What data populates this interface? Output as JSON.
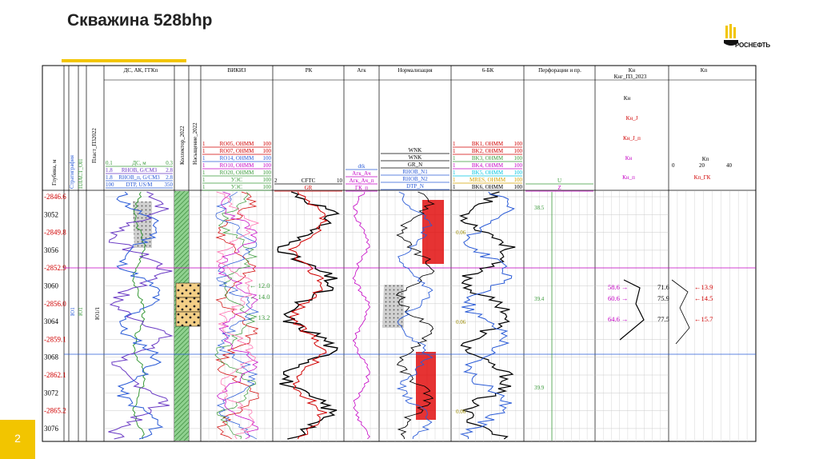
{
  "slide": {
    "title": "Скважина 528bhp",
    "page_number": "2",
    "logo_text": "РОСНЕФТЬ"
  },
  "tracks": {
    "depth_label": "Глубина, м",
    "strat_label": "Стратиграфия",
    "plast_label": "Пласт_П32022",
    "plast_sub1": "ПЛАСТ_ОП",
    "plast_sub2": "ПЛАСТ_ОП",
    "ds_title": "ДС, АК, ГГКп",
    "ds_curves": [
      "ДС, м",
      "RHOB, G/CM3",
      "RHOB_п, G/CM3",
      "DTP, US/M"
    ],
    "ds_scales": [
      [
        "0.1",
        "0.3"
      ],
      [
        "1.8",
        "2.8"
      ],
      [
        "1.8",
        "2.8"
      ],
      [
        "100",
        "350"
      ]
    ],
    "kollektor_label": "Коллектор_2022",
    "nasysh_label": "Насыщение_2022",
    "vikiz_title": "ВИКИЗ",
    "vikiz_curves": [
      "RO05, ОНММ",
      "RO07, ОНММ",
      "RO14, ОНММ",
      "RO10, ОНММ",
      "RO20, ОНММ",
      "УЭС",
      "УЭС"
    ],
    "rk_title": "РК",
    "rk_curves": [
      "CFTC",
      "GR"
    ],
    "agk_title": "Агк",
    "agk_curves": [
      "dtk",
      "Агк_Ач",
      "Агк_Ач_п",
      "ГК_п"
    ],
    "norm_title": "Нормализация",
    "norm_curves": [
      "WNK",
      "WNK",
      "GR_N",
      "RHOB_N1",
      "RHOB_N2",
      "DTP_N"
    ],
    "bk_title": "6-БК",
    "bk_curves": [
      "BK1, ОНММ",
      "BK2, ОНММ",
      "BK3, ОНММ",
      "BK4, ОНММ",
      "BK5, ОНММ",
      "MRES, ОНММ",
      "BK6, ОНММ"
    ],
    "perf_title": "Перфорации и пр.",
    "perf_curves": [
      "U",
      "Z"
    ],
    "kn_title": "Кн",
    "kn_curves": [
      "Кнг_ПЗ_2023",
      "Кн",
      "Кн_J",
      "Кн_J_п",
      "Кн",
      "Кн_п"
    ],
    "kp_title": "Кп",
    "kp_curves": [
      "Кп",
      "Кп_ГК"
    ],
    "kp_scale": [
      "0",
      "20",
      "40"
    ]
  },
  "depths": [
    {
      "label": "-2846.6",
      "md": ""
    },
    {
      "label": "3052",
      "md": ""
    },
    {
      "label": "-2849.8",
      "md": ""
    },
    {
      "label": "3056",
      "md": ""
    },
    {
      "label": "-2852.9",
      "md": ""
    },
    {
      "label": "3060",
      "md": ""
    },
    {
      "label": "-2856.0",
      "md": ""
    },
    {
      "label": "3064",
      "md": ""
    },
    {
      "label": "-2859.1",
      "md": ""
    },
    {
      "label": "3068",
      "md": ""
    },
    {
      "label": "-2862.1",
      "md": ""
    },
    {
      "label": "3072",
      "md": ""
    },
    {
      "label": "-2865.2",
      "md": ""
    },
    {
      "label": "3076",
      "md": ""
    }
  ],
  "zone": {
    "formation": "Ю1/1",
    "strat": "Ю1",
    "strat2": "Ю1"
  },
  "vikiz_annotations": [
    "12.0",
    "14.0",
    "13.2"
  ],
  "norm_values": [
    "0.06",
    "0.06",
    "0.06"
  ],
  "perf_values": [
    "38.5",
    "39.4",
    "39.9"
  ],
  "kn_annotations": [
    {
      "a": "58.6",
      "b": "71.6",
      "c": "13.9"
    },
    {
      "a": "60.6",
      "b": "75.9",
      "c": "14.5"
    },
    {
      "a": "64.6",
      "b": "77.5",
      "c": "15.7"
    }
  ]
}
